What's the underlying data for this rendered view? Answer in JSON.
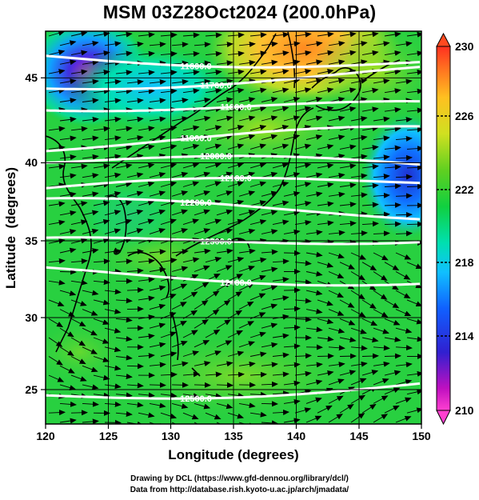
{
  "title": "MSM 03Z28Oct2024 (200.0hPa)",
  "xaxis": {
    "label": "Longitude (degrees)",
    "ticks": [
      "120",
      "125",
      "130",
      "135",
      "140",
      "145",
      "150"
    ]
  },
  "yaxis": {
    "label": "Latitude  (degrees)",
    "ticks": [
      "25",
      "30",
      "35",
      "40",
      "45"
    ]
  },
  "colorbar": {
    "ticks": [
      "230",
      "226",
      "222",
      "218",
      "214",
      "210"
    ],
    "min": 210,
    "max": 230
  },
  "contours": [
    {
      "label": "11600.0",
      "lat": 46.2
    },
    {
      "label": "11700.0",
      "lat": 45.0
    },
    {
      "label": "11800.0",
      "lat": 43.2
    },
    {
      "label": "11900.0",
      "lat": 41.1
    },
    {
      "label": "12000.0",
      "lat": 39.5
    },
    {
      "label": "12100.0",
      "lat": 38.1
    },
    {
      "label": "12200.0",
      "lat": 36.6
    },
    {
      "label": "12300.0",
      "lat": 34.6
    },
    {
      "label": "12400.0",
      "lat": 32.3
    },
    {
      "label": "12500.0",
      "lat": 25.0
    }
  ],
  "credits": {
    "line1": "Drawing by DCL (https://www.gfd-dennou.org/library/dcl/)",
    "line2": "Data from http://database.rish.kyoto-u.ac.jp/arch/jmadata/"
  },
  "colors": {
    "palette": [
      "#ff3fd0",
      "#b000c0",
      "#2030e0",
      "#10a0ff",
      "#00e0c0",
      "#10d040",
      "#a0e020",
      "#e0e010",
      "#ffa020",
      "#ff4020"
    ]
  }
}
